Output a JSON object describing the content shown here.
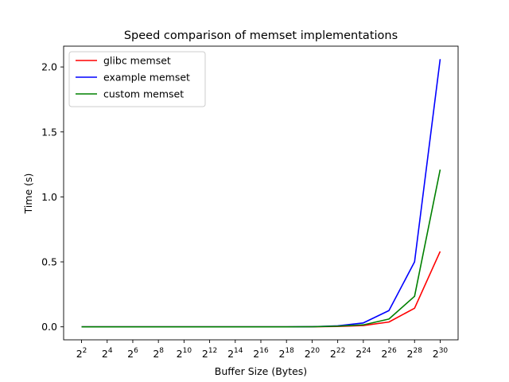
{
  "chart_data": {
    "type": "line",
    "title": "Speed comparison of memset implementations",
    "xlabel": "Buffer Size (Bytes)",
    "ylabel": "Time (s)",
    "x_scale": "log2",
    "x": [
      4,
      16,
      64,
      256,
      1024,
      4096,
      16384,
      65536,
      262144,
      1048576,
      4194304,
      16777216,
      67108864,
      268435456,
      1073741824
    ],
    "x_tick_labels": [
      {
        "base": "2",
        "exp": "2"
      },
      {
        "base": "2",
        "exp": "4"
      },
      {
        "base": "2",
        "exp": "6"
      },
      {
        "base": "2",
        "exp": "8"
      },
      {
        "base": "2",
        "exp": "10"
      },
      {
        "base": "2",
        "exp": "12"
      },
      {
        "base": "2",
        "exp": "14"
      },
      {
        "base": "2",
        "exp": "16"
      },
      {
        "base": "2",
        "exp": "18"
      },
      {
        "base": "2",
        "exp": "20"
      },
      {
        "base": "2",
        "exp": "22"
      },
      {
        "base": "2",
        "exp": "24"
      },
      {
        "base": "2",
        "exp": "26"
      },
      {
        "base": "2",
        "exp": "28"
      },
      {
        "base": "2",
        "exp": "30"
      }
    ],
    "y_ticks": [
      0.0,
      0.5,
      1.0,
      1.5,
      2.0
    ],
    "y_tick_labels": [
      "0.0",
      "0.5",
      "1.0",
      "1.5",
      "2.0"
    ],
    "ylim": [
      -0.1,
      2.16
    ],
    "grid": false,
    "legend_position": "upper-left",
    "series": [
      {
        "name": "glibc memset",
        "color": "#ff0000",
        "values": [
          0,
          0,
          0,
          0,
          0,
          0,
          0,
          0,
          0,
          0.0005,
          0.003,
          0.01,
          0.037,
          0.143,
          0.58
        ]
      },
      {
        "name": "example memset",
        "color": "#0000ff",
        "values": [
          0,
          0,
          0,
          0,
          0,
          0,
          0,
          0,
          0,
          0.001,
          0.008,
          0.03,
          0.125,
          0.5,
          2.06
        ]
      },
      {
        "name": "custom memset",
        "color": "#008000",
        "values": [
          0,
          0,
          0,
          0,
          0,
          0,
          0,
          0,
          0,
          0.0008,
          0.005,
          0.015,
          0.06,
          0.235,
          1.21
        ]
      }
    ]
  }
}
